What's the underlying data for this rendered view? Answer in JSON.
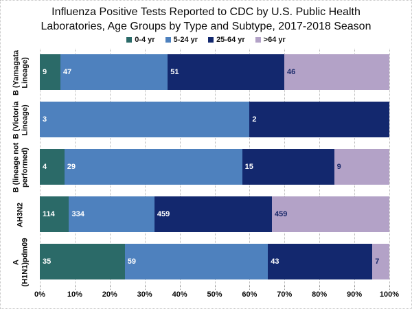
{
  "chart_data": {
    "type": "bar",
    "variant": "horizontal-stacked-100pct",
    "title": "Influenza Positive Tests Reported to CDC by U.S. Public Health Laboratories, Age Groups by Type and Subtype, 2017-2018 Season",
    "categories": [
      "B (Yamagata\nLineage)",
      "B (Victoria\nLineage)",
      "B (lineage not\nperformed)",
      "AH3N2",
      "A\n(H1N1)pdm09"
    ],
    "series": [
      {
        "name": "0-4 yr",
        "color": "#2B6A68",
        "label_color": "#FFFFFF",
        "values": [
          9,
          0,
          4,
          114,
          35
        ]
      },
      {
        "name": "5-24 yr",
        "color": "#4E81BE",
        "label_color": "#FFFFFF",
        "values": [
          47,
          3,
          29,
          334,
          59
        ]
      },
      {
        "name": "25-64 yr",
        "color": "#13286E",
        "label_color": "#FFFFFF",
        "values": [
          51,
          2,
          15,
          459,
          43
        ]
      },
      {
        "name": ">64 yr",
        "color": "#B3A2C7",
        "label_color": "#1B2A6B",
        "values": [
          46,
          0,
          9,
          459,
          7
        ]
      }
    ],
    "x_ticks": [
      "0%",
      "10%",
      "20%",
      "30%",
      "40%",
      "50%",
      "60%",
      "70%",
      "80%",
      "90%",
      "100%"
    ],
    "xlim": [
      0,
      100
    ],
    "grid": "vertical-dotted",
    "legend_position": "top-center",
    "gridline_color": "#b9b9b9"
  }
}
